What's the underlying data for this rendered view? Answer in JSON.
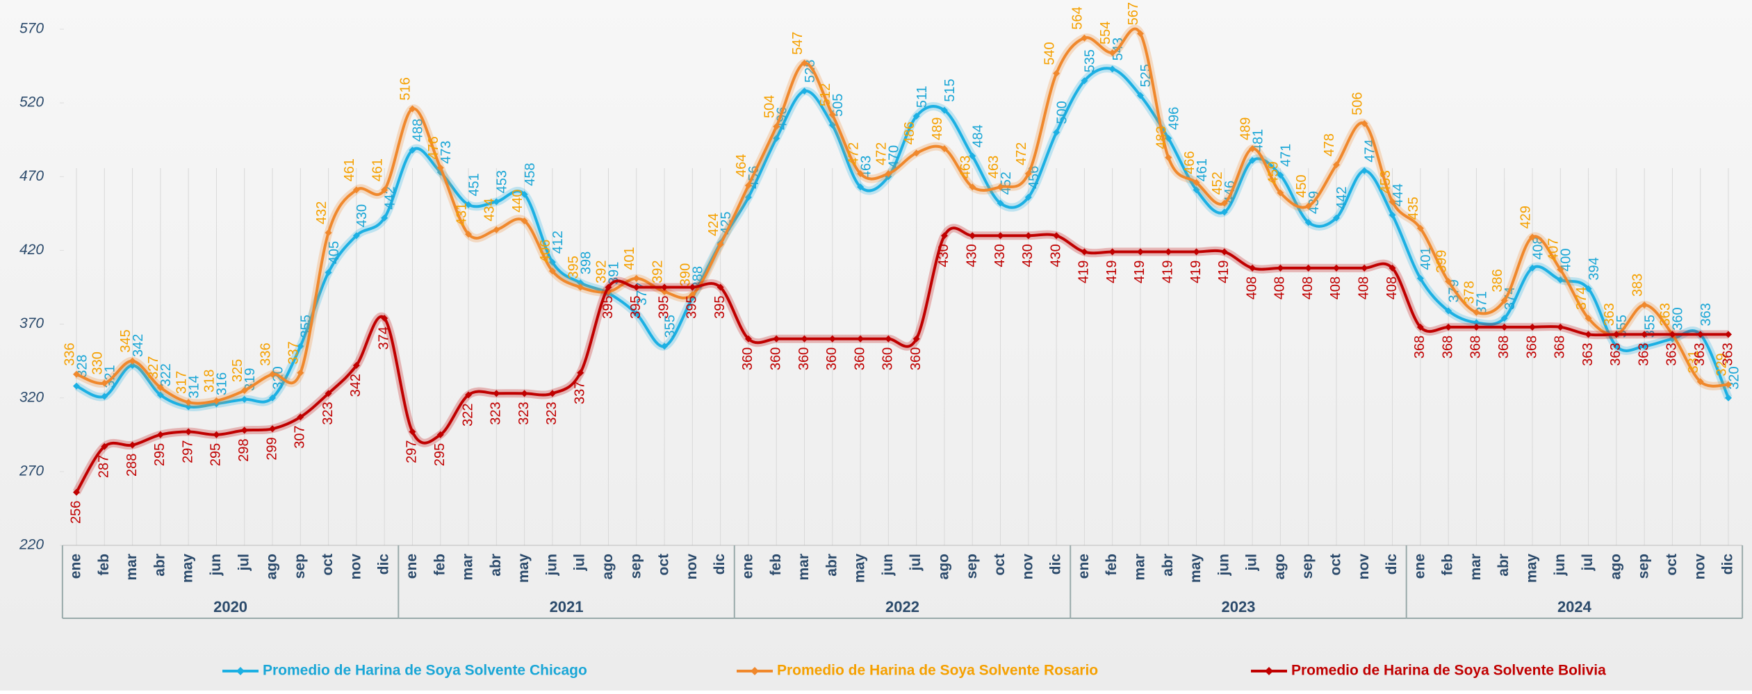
{
  "chart_data": {
    "type": "line",
    "categories": [
      "ene",
      "feb",
      "mar",
      "abr",
      "may",
      "jun",
      "jul",
      "ago",
      "sep",
      "oct",
      "nov",
      "dic",
      "ene",
      "feb",
      "mar",
      "abr",
      "may",
      "jun",
      "jul",
      "ago",
      "sep",
      "oct",
      "nov",
      "dic",
      "ene",
      "feb",
      "mar",
      "abr",
      "may",
      "jun",
      "jul",
      "ago",
      "sep",
      "oct",
      "nov",
      "dic",
      "ene",
      "feb",
      "mar",
      "abr",
      "may",
      "jun",
      "jul",
      "ago",
      "sep",
      "oct",
      "nov",
      "dic",
      "ene",
      "feb",
      "mar",
      "abr",
      "may",
      "jun",
      "jul",
      "ago",
      "sep",
      "oct",
      "nov",
      "dic"
    ],
    "years": [
      "2020",
      "2021",
      "2022",
      "2023",
      "2024"
    ],
    "ylim": [
      220,
      570
    ],
    "yticks": [
      220,
      270,
      320,
      370,
      420,
      470,
      520,
      570
    ],
    "series": [
      {
        "name": "Promedio de Harina de Soya Solvente Chicago",
        "color": "#1cb0e3",
        "label_color": "#1aa6d6",
        "values": [
          328,
          321,
          342,
          322,
          314,
          316,
          319,
          320,
          355,
          405,
          430,
          442,
          488,
          473,
          451,
          453,
          458,
          412,
          398,
          391,
          377,
          355,
          388,
          425,
          456,
          496,
          528,
          505,
          463,
          470,
          511,
          515,
          484,
          452,
          456,
          500,
          535,
          543,
          525,
          496,
          461,
          446,
          481,
          471,
          439,
          442,
          474,
          444,
          401,
          379,
          371,
          374,
          408,
          400,
          394,
          355,
          355,
          360,
          363,
          320
        ]
      },
      {
        "name": "Promedio de Harina de Soya Solvente Rosario",
        "color": "#f0882c",
        "label_color": "#f5a000",
        "values": [
          336,
          330,
          345,
          327,
          317,
          318,
          325,
          336,
          337,
          432,
          461,
          461,
          516,
          476,
          431,
          434,
          440,
          406,
          395,
          392,
          401,
          392,
          390,
          424,
          464,
          504,
          547,
          512,
          472,
          472,
          486,
          489,
          463,
          463,
          472,
          540,
          564,
          554,
          567,
          483,
          466,
          452,
          489,
          459,
          450,
          478,
          506,
          453,
          435,
          399,
          378,
          386,
          429,
          407,
          374,
          363,
          383,
          363,
          331,
          329
        ]
      },
      {
        "name": "Promedio de Harina de Soya Solvente Bolivia",
        "color": "#c00000",
        "label_color": "#c00000",
        "values": [
          256,
          287,
          288,
          295,
          297,
          295,
          298,
          299,
          307,
          323,
          342,
          374,
          297,
          295,
          322,
          323,
          323,
          323,
          337,
          395,
          395,
          395,
          395,
          395,
          360,
          360,
          360,
          360,
          360,
          360,
          360,
          430,
          430,
          430,
          430,
          430,
          419,
          419,
          419,
          419,
          419,
          419,
          408,
          408,
          408,
          408,
          408,
          408,
          368,
          368,
          368,
          368,
          368,
          368,
          363,
          363,
          363,
          363,
          363,
          363
        ]
      }
    ]
  }
}
